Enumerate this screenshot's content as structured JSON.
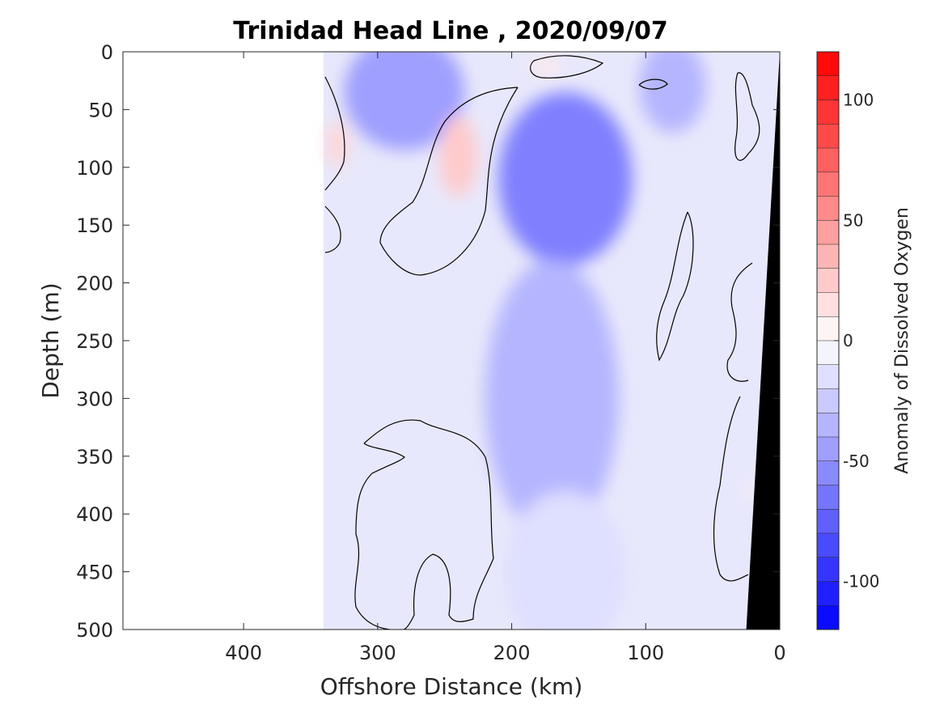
{
  "chart_data": {
    "type": "heatmap",
    "title": "Trinidad Head Line , 2020/09/07",
    "xlabel": "Offshore Distance (km)",
    "ylabel": "Depth (m)",
    "colorbar_label": "Anomaly of Dissolved Oxygen",
    "xlim": [
      490,
      0
    ],
    "ylim": [
      500,
      0
    ],
    "x_reversed": true,
    "y_reversed": true,
    "x_ticks": [
      400,
      300,
      200,
      100,
      0
    ],
    "y_ticks": [
      0,
      50,
      100,
      150,
      200,
      250,
      300,
      350,
      400,
      450,
      500
    ],
    "clim": [
      -120,
      120
    ],
    "colorbar_levels": 24,
    "colorbar_ticks": [
      100,
      50,
      0,
      -50,
      -100
    ],
    "colormap": [
      "#0000ff",
      "#ffffff",
      "#ff0000"
    ],
    "data_extent_x": [
      340,
      0
    ],
    "bathymetry_color": "#000000",
    "bathymetry": [
      [
        0,
        0
      ],
      [
        25,
        500
      ],
      [
        0,
        500
      ]
    ],
    "anomaly_features": [
      {
        "x": 168,
        "depth": 75,
        "value": -95,
        "rx": 28,
        "rdepth": 35
      },
      {
        "x": 160,
        "depth": 110,
        "value": -60,
        "rx": 50,
        "rdepth": 75
      },
      {
        "x": 265,
        "depth": 10,
        "value": -80,
        "rx": 18,
        "rdepth": 18
      },
      {
        "x": 280,
        "depth": 35,
        "value": -45,
        "rx": 45,
        "rdepth": 50
      },
      {
        "x": 240,
        "depth": 90,
        "value": 25,
        "rx": 14,
        "rdepth": 35
      },
      {
        "x": 330,
        "depth": 80,
        "value": 20,
        "rx": 8,
        "rdepth": 20
      },
      {
        "x": 175,
        "depth": 12,
        "value": 10,
        "rx": 10,
        "rdepth": 8
      },
      {
        "x": 80,
        "depth": 30,
        "value": -35,
        "rx": 25,
        "rdepth": 40
      },
      {
        "x": 170,
        "depth": 300,
        "value": -35,
        "rx": 50,
        "rdepth": 120
      },
      {
        "x": 160,
        "depth": 450,
        "value": -15,
        "rx": 45,
        "rdepth": 70
      },
      {
        "x": 20,
        "depth": 380,
        "value": 8,
        "rx": 4,
        "rdepth": 6
      }
    ]
  }
}
